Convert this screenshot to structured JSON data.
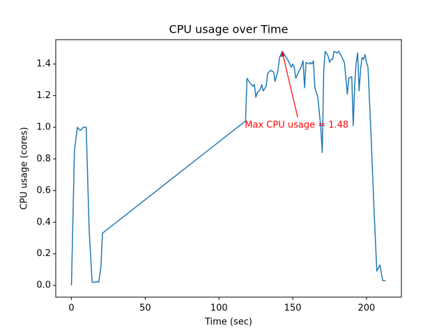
{
  "chart_data": {
    "type": "line",
    "title": "CPU usage over Time",
    "xlabel": "Time (sec)",
    "ylabel": "CPU usage (cores)",
    "annotation": "Max CPU usage = 1.48",
    "annotation_color": "#ff0000",
    "xlim": [
      -10.65,
      223.65
    ],
    "ylim": [
      -0.074,
      1.554
    ],
    "xticks": [
      0,
      50,
      100,
      150,
      200
    ],
    "yticks": [
      {
        "value": 0,
        "label": "0.0"
      },
      0.2,
      0.4,
      0.6,
      0.8,
      {
        "value": 1,
        "label": "1.0"
      },
      1.2,
      1.4
    ],
    "grid": false,
    "series": [
      {
        "color": "#1f77b4",
        "x": [
          0,
          2,
          4,
          6,
          8,
          10,
          12,
          14,
          16,
          17,
          18.5,
          20,
          21,
          118,
          119,
          121,
          123,
          124,
          125,
          126,
          128,
          129,
          130,
          132,
          133,
          135,
          137,
          138,
          140,
          141,
          143,
          145,
          147,
          148,
          149,
          150,
          151,
          152,
          154,
          156,
          157,
          158,
          159,
          161,
          162,
          163,
          164,
          165,
          167,
          169,
          170,
          171,
          172,
          174,
          175,
          176,
          177,
          178,
          180,
          181,
          183,
          185,
          187,
          188,
          190,
          191,
          192,
          193,
          194,
          195,
          196,
          197,
          198,
          199,
          200,
          201,
          203,
          205,
          207,
          209,
          211,
          213
        ],
        "values": [
          0.0,
          0.85,
          1.0,
          0.98,
          1.0,
          1.0,
          0.35,
          0.02,
          0.02,
          0.025,
          0.02,
          0.12,
          0.33,
          1.04,
          1.31,
          1.28,
          1.26,
          1.27,
          1.19,
          1.22,
          1.24,
          1.27,
          1.23,
          1.26,
          1.34,
          1.36,
          1.35,
          1.29,
          1.36,
          1.44,
          1.48,
          1.45,
          1.42,
          1.4,
          1.38,
          1.4,
          1.38,
          1.31,
          1.35,
          1.39,
          1.42,
          1.25,
          1.41,
          1.4,
          1.41,
          1.4,
          1.42,
          1.25,
          1.19,
          1.0,
          0.84,
          1.36,
          1.48,
          1.45,
          1.41,
          1.43,
          1.43,
          1.48,
          1.47,
          1.48,
          1.45,
          1.41,
          1.21,
          1.31,
          1.32,
          1.01,
          1.27,
          1.41,
          1.47,
          1.23,
          1.37,
          1.44,
          1.43,
          1.46,
          1.41,
          1.38,
          0.97,
          0.5,
          0.09,
          0.13,
          0.03,
          0.03
        ]
      }
    ]
  }
}
